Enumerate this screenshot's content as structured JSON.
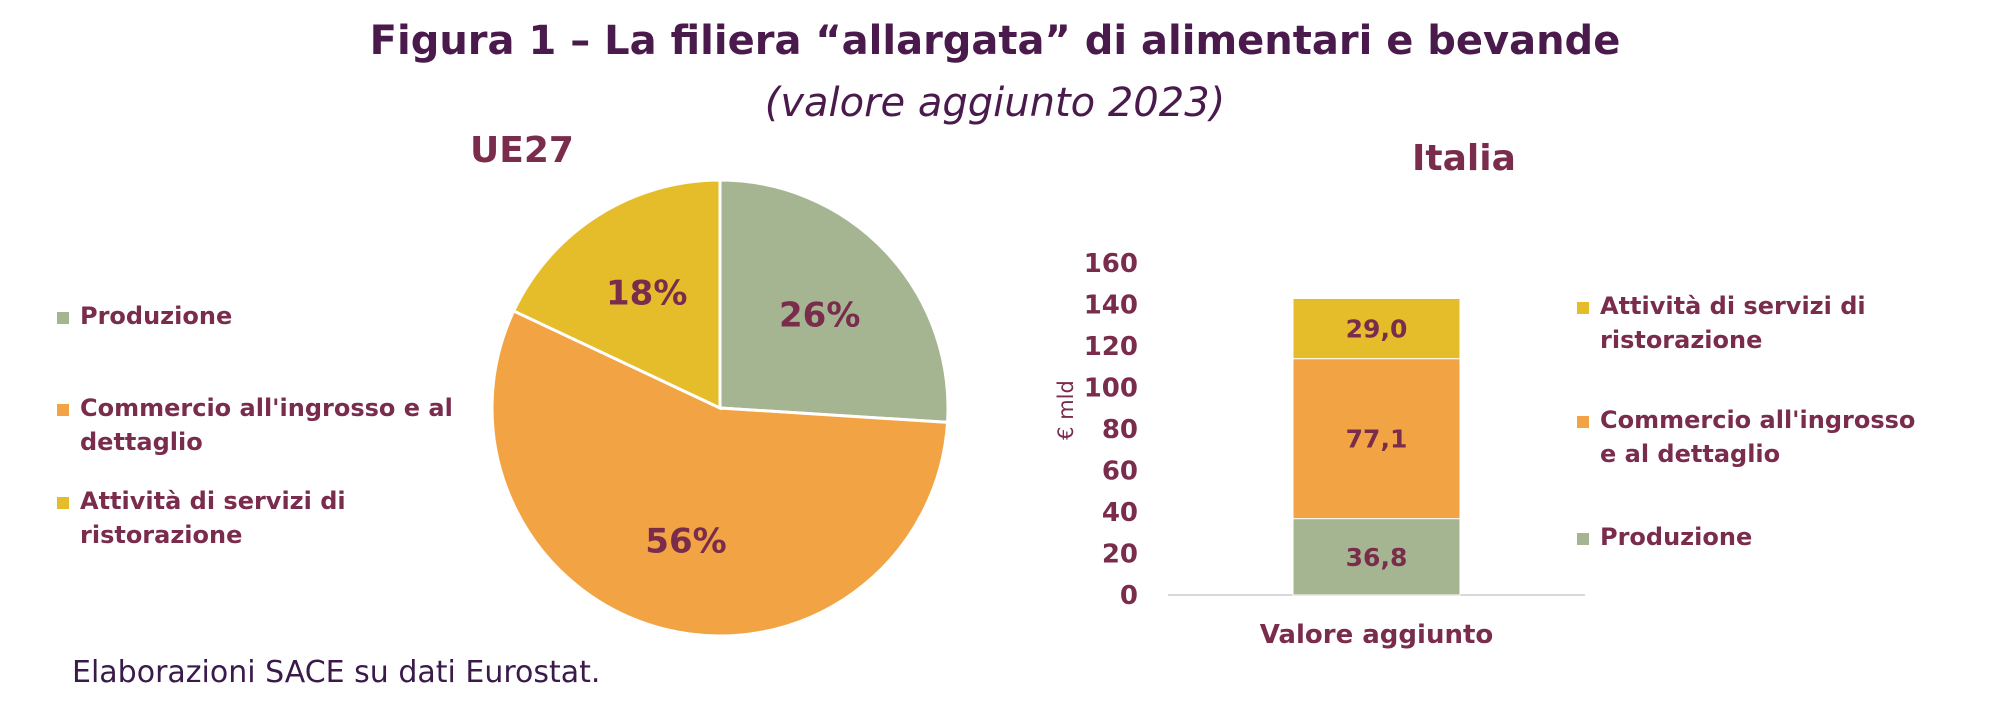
{
  "title": "Figura 1 – La filiera “allargata” di alimentari e bevande",
  "subtitle": "(valore aggiunto 2023)",
  "source": "Elaborazioni SACE su dati Eurostat.",
  "colors": {
    "produzione": "#a5b591",
    "commercio": "#f2a444",
    "ristorazione": "#e5bd2b",
    "text": "#7a2c4c",
    "title": "#4a1a4d"
  },
  "chart_data": [
    {
      "type": "pie",
      "title": "UE27",
      "categories": [
        "Produzione",
        "Commercio all'ingrosso e al dettaglio",
        "Attività di servizi di ristorazione"
      ],
      "values": [
        26,
        56,
        18
      ],
      "labels": [
        "26%",
        "56%",
        "18%"
      ],
      "legend": [
        {
          "lines": [
            "Produzione"
          ],
          "color": "#a5b591"
        },
        {
          "lines": [
            "Commercio all'ingrosso e al",
            "dettaglio"
          ],
          "color": "#f2a444"
        },
        {
          "lines": [
            "Attività di servizi di",
            "ristorazione"
          ],
          "color": "#e5bd2b"
        }
      ]
    },
    {
      "type": "bar",
      "stacked": true,
      "title": "Italia",
      "categories": [
        "Valore aggiunto"
      ],
      "ylabel": "€ mld",
      "ylim": [
        0,
        160
      ],
      "yticks": [
        "0",
        "20",
        "40",
        "60",
        "80",
        "100",
        "120",
        "140",
        "160"
      ],
      "series": [
        {
          "name": "Produzione",
          "values": [
            36.8
          ],
          "label": "36,8",
          "color": "#a5b591"
        },
        {
          "name": "Commercio all'ingrosso e al dettaglio",
          "values": [
            77.1
          ],
          "label": "77,1",
          "color": "#f2a444"
        },
        {
          "name": "Attività di servizi di ristorazione",
          "values": [
            29.0
          ],
          "label": "29,0",
          "color": "#e5bd2b"
        }
      ],
      "legend": [
        {
          "lines": [
            "Attività di servizi di",
            "ristorazione"
          ],
          "color": "#e5bd2b"
        },
        {
          "lines": [
            "Commercio all'ingrosso",
            "e al dettaglio"
          ],
          "color": "#f2a444"
        },
        {
          "lines": [
            "Produzione"
          ],
          "color": "#a5b591"
        }
      ]
    }
  ]
}
